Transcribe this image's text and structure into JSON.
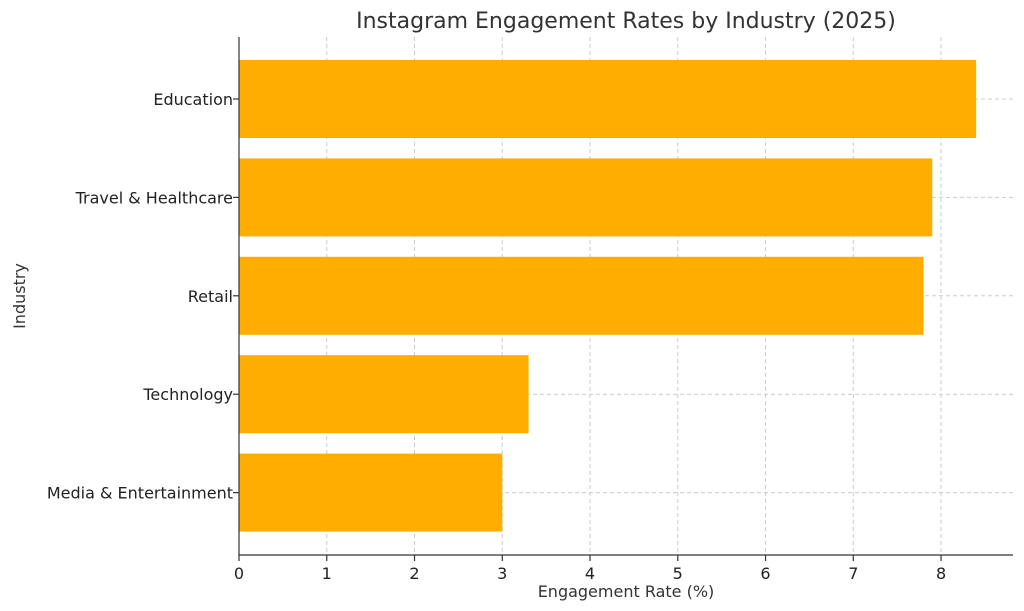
{
  "chart_data": {
    "type": "bar",
    "orientation": "horizontal",
    "title": "Instagram Engagement Rates by Industry (2025)",
    "xlabel": "Engagement Rate (%)",
    "ylabel": "Industry",
    "categories": [
      "Education",
      "Travel & Healthcare",
      "Retail",
      "Technology",
      "Media & Entertainment"
    ],
    "values": [
      8.4,
      7.9,
      7.8,
      3.3,
      3.0
    ],
    "xlim": [
      0,
      8.82
    ],
    "xticks": [
      0,
      1,
      2,
      3,
      4,
      5,
      6,
      7,
      8
    ],
    "grid": true,
    "bar_color": "#FFAE00"
  }
}
